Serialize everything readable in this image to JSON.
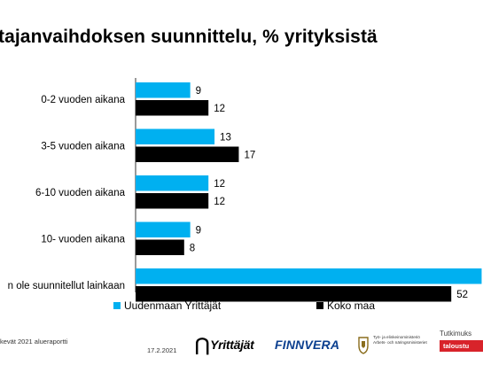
{
  "page": {
    "title": "tajanvaihdoksen suunnittelu, % yrityksistä"
  },
  "chart_data": {
    "type": "bar",
    "orientation": "horizontal",
    "categories": [
      "0-2 vuoden aikana",
      "3-5 vuoden aikana",
      "6-10 vuoden aikana",
      "10- vuoden aikana",
      "n ole suunnitellut  lainkaan"
    ],
    "series": [
      {
        "name": "Uudenmaan Yrittäjät",
        "color": "#00b0f0",
        "values": [
          9,
          13,
          12,
          9,
          57
        ]
      },
      {
        "name": "Koko maa",
        "color": "#000000",
        "values": [
          12,
          17,
          12,
          8,
          52
        ]
      }
    ],
    "data_labels": [
      [
        "9",
        "13",
        "12",
        "9",
        ""
      ],
      [
        "12",
        "17",
        "12",
        "8",
        "52"
      ]
    ],
    "legend_position": "bottom",
    "grid": false
  },
  "footer": {
    "source_line1": "kevät 2021 alueraportti",
    "source_line2": "",
    "date": "17.2.2021"
  },
  "logos": {
    "yrittajat": "Yrittäjät",
    "finnvera": "FINNVERA",
    "ministry_line1": "Työ- ja elinkeinoministeriö",
    "ministry_line2": "Arbets- och näringsministeriet",
    "tutkimus": "Tutkimuks",
    "talous": "taloustu"
  }
}
